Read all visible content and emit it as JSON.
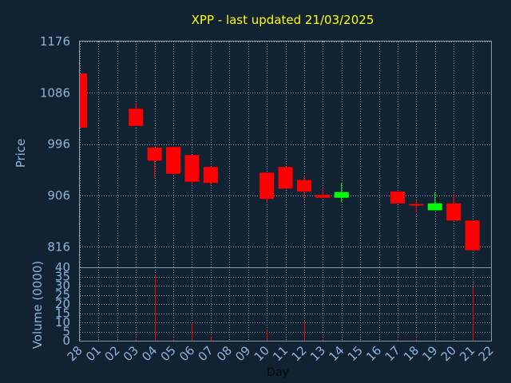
{
  "chart_data": {
    "type": "candlestick",
    "title": "XPP - last updated 21/03/2025",
    "xlabel": "Day",
    "price_panel": {
      "ylabel": "Price",
      "ylim": [
        780,
        1176
      ],
      "yticks": [
        "1176",
        "1086",
        "996",
        "906",
        "816"
      ],
      "ytick_values": [
        1176,
        1086,
        996,
        906,
        816
      ]
    },
    "volume_panel": {
      "ylabel": "Volume (0000)",
      "ylim": [
        0,
        40
      ],
      "yticks": [
        "40",
        "35",
        "30",
        "25",
        "20",
        "15",
        "10",
        "5",
        "0"
      ],
      "ytick_values": [
        40,
        35,
        30,
        25,
        20,
        15,
        10,
        5,
        0
      ]
    },
    "x_labels": [
      "28",
      "01",
      "02",
      "03",
      "04",
      "05",
      "06",
      "07",
      "08",
      "09",
      "10",
      "11",
      "12",
      "13",
      "14",
      "15",
      "16",
      "17",
      "18",
      "19",
      "20",
      "21",
      "22"
    ],
    "candles": [
      {
        "day": "28",
        "open": 1120,
        "close": 1025,
        "high": 1120,
        "low": 1025
      },
      {
        "day": "03",
        "open": 1058,
        "close": 1028,
        "high": 1068,
        "low": 1028
      },
      {
        "day": "04",
        "open": 990,
        "close": 967,
        "high": 990,
        "low": 937
      },
      {
        "day": "05",
        "open": 991,
        "close": 944,
        "high": 991,
        "low": 944
      },
      {
        "day": "06",
        "open": 977,
        "close": 930,
        "high": 977,
        "low": 925
      },
      {
        "day": "07",
        "open": 956,
        "close": 928,
        "high": 956,
        "low": 925
      },
      {
        "day": "10",
        "open": 946,
        "close": 900,
        "high": 946,
        "low": 893
      },
      {
        "day": "11",
        "open": 956,
        "close": 918,
        "high": 956,
        "low": 918
      },
      {
        "day": "12",
        "open": 933,
        "close": 913,
        "high": 940,
        "low": 900
      },
      {
        "day": "13",
        "open": 907,
        "close": 902,
        "high": 918,
        "low": 902
      },
      {
        "day": "14",
        "open": 902,
        "close": 912,
        "high": 928,
        "low": 895
      },
      {
        "day": "17",
        "open": 913,
        "close": 892,
        "high": 913,
        "low": 892
      },
      {
        "day": "18",
        "open": 891,
        "close": 889,
        "high": 897,
        "low": 876
      },
      {
        "day": "19",
        "open": 880,
        "close": 892,
        "high": 912,
        "low": 880
      },
      {
        "day": "20",
        "open": 892,
        "close": 862,
        "high": 909,
        "low": 862
      },
      {
        "day": "21",
        "open": 862,
        "close": 810,
        "high": 862,
        "low": 810
      }
    ],
    "volumes": [
      {
        "day": "03",
        "value": 1
      },
      {
        "day": "04",
        "value": 36
      },
      {
        "day": "05",
        "value": 1
      },
      {
        "day": "06",
        "value": 10
      },
      {
        "day": "07",
        "value": 2
      },
      {
        "day": "10",
        "value": 6
      },
      {
        "day": "12",
        "value": 11
      },
      {
        "day": "13",
        "value": 1
      },
      {
        "day": "17",
        "value": 1
      },
      {
        "day": "18",
        "value": 1
      },
      {
        "day": "21",
        "value": 29
      }
    ],
    "grid": true,
    "colors": {
      "background": "#112233",
      "up": "#00ff00",
      "down": "#ff0000",
      "grid": "#8899aa",
      "title": "#ffff00",
      "axis_text": "#8fb3d9"
    }
  }
}
